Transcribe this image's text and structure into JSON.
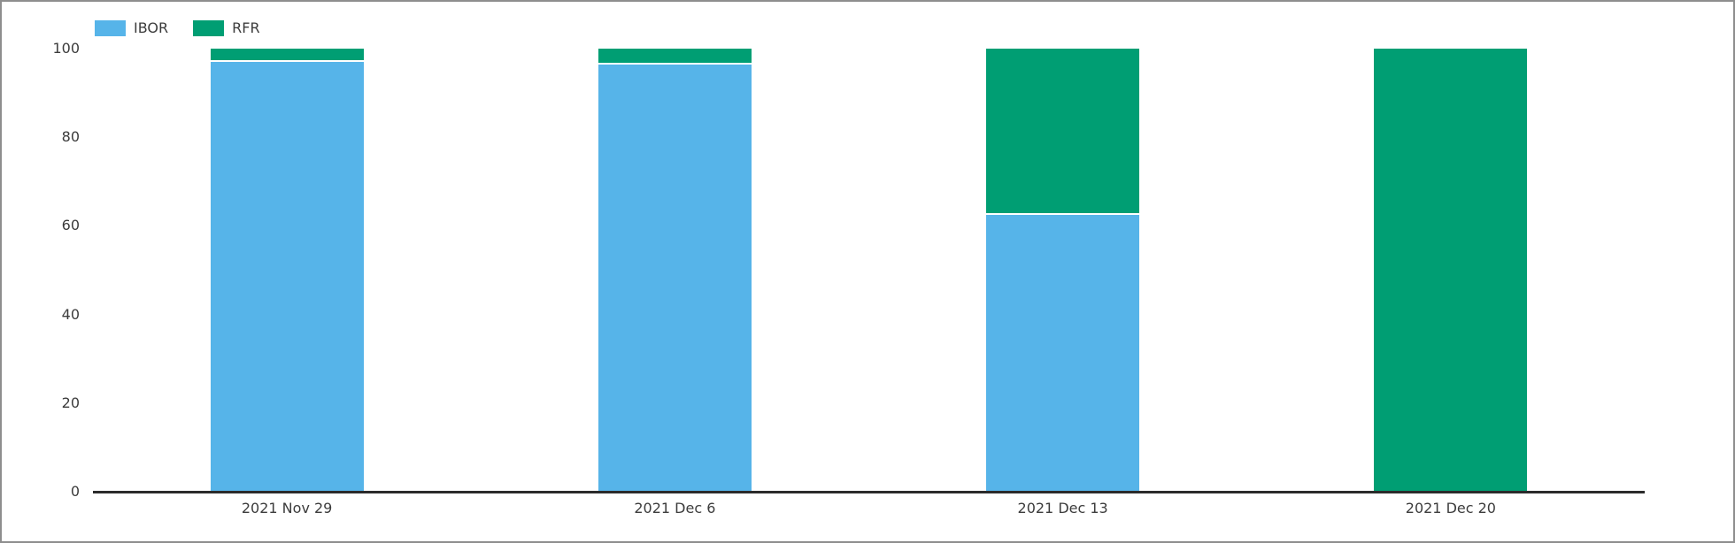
{
  "frame": {
    "background": "#ffffff",
    "border_color": "#8e8e8e"
  },
  "legend": {
    "items": [
      {
        "label": "IBOR",
        "color": "#56B4E9",
        "swatch_icon": "legend-swatch-ibor"
      },
      {
        "label": "RFR",
        "color": "#009E73",
        "swatch_icon": "legend-swatch-rfr"
      }
    ]
  },
  "chart_data": {
    "type": "bar",
    "stacked": true,
    "orientation": "vertical",
    "title": "",
    "xlabel": "",
    "ylabel": "",
    "categories": [
      "2021 Nov 29",
      "2021 Dec 6",
      "2021 Dec 13",
      "2021 Dec 20"
    ],
    "series": [
      {
        "name": "IBOR",
        "color": "#56B4E9",
        "values": [
          97,
          96.5,
          62.5,
          0
        ]
      },
      {
        "name": "RFR",
        "color": "#009E73",
        "values": [
          3,
          3.5,
          37.5,
          100
        ]
      }
    ],
    "ylim": [
      0,
      100
    ],
    "yticks": [
      0,
      20,
      40,
      60,
      80,
      100
    ],
    "grid": false,
    "legend_position": "top-left",
    "axis_color": "#2b2b2b",
    "tick_text_color": "#3c3c3c",
    "segment_separator_color": "#ffffff"
  }
}
